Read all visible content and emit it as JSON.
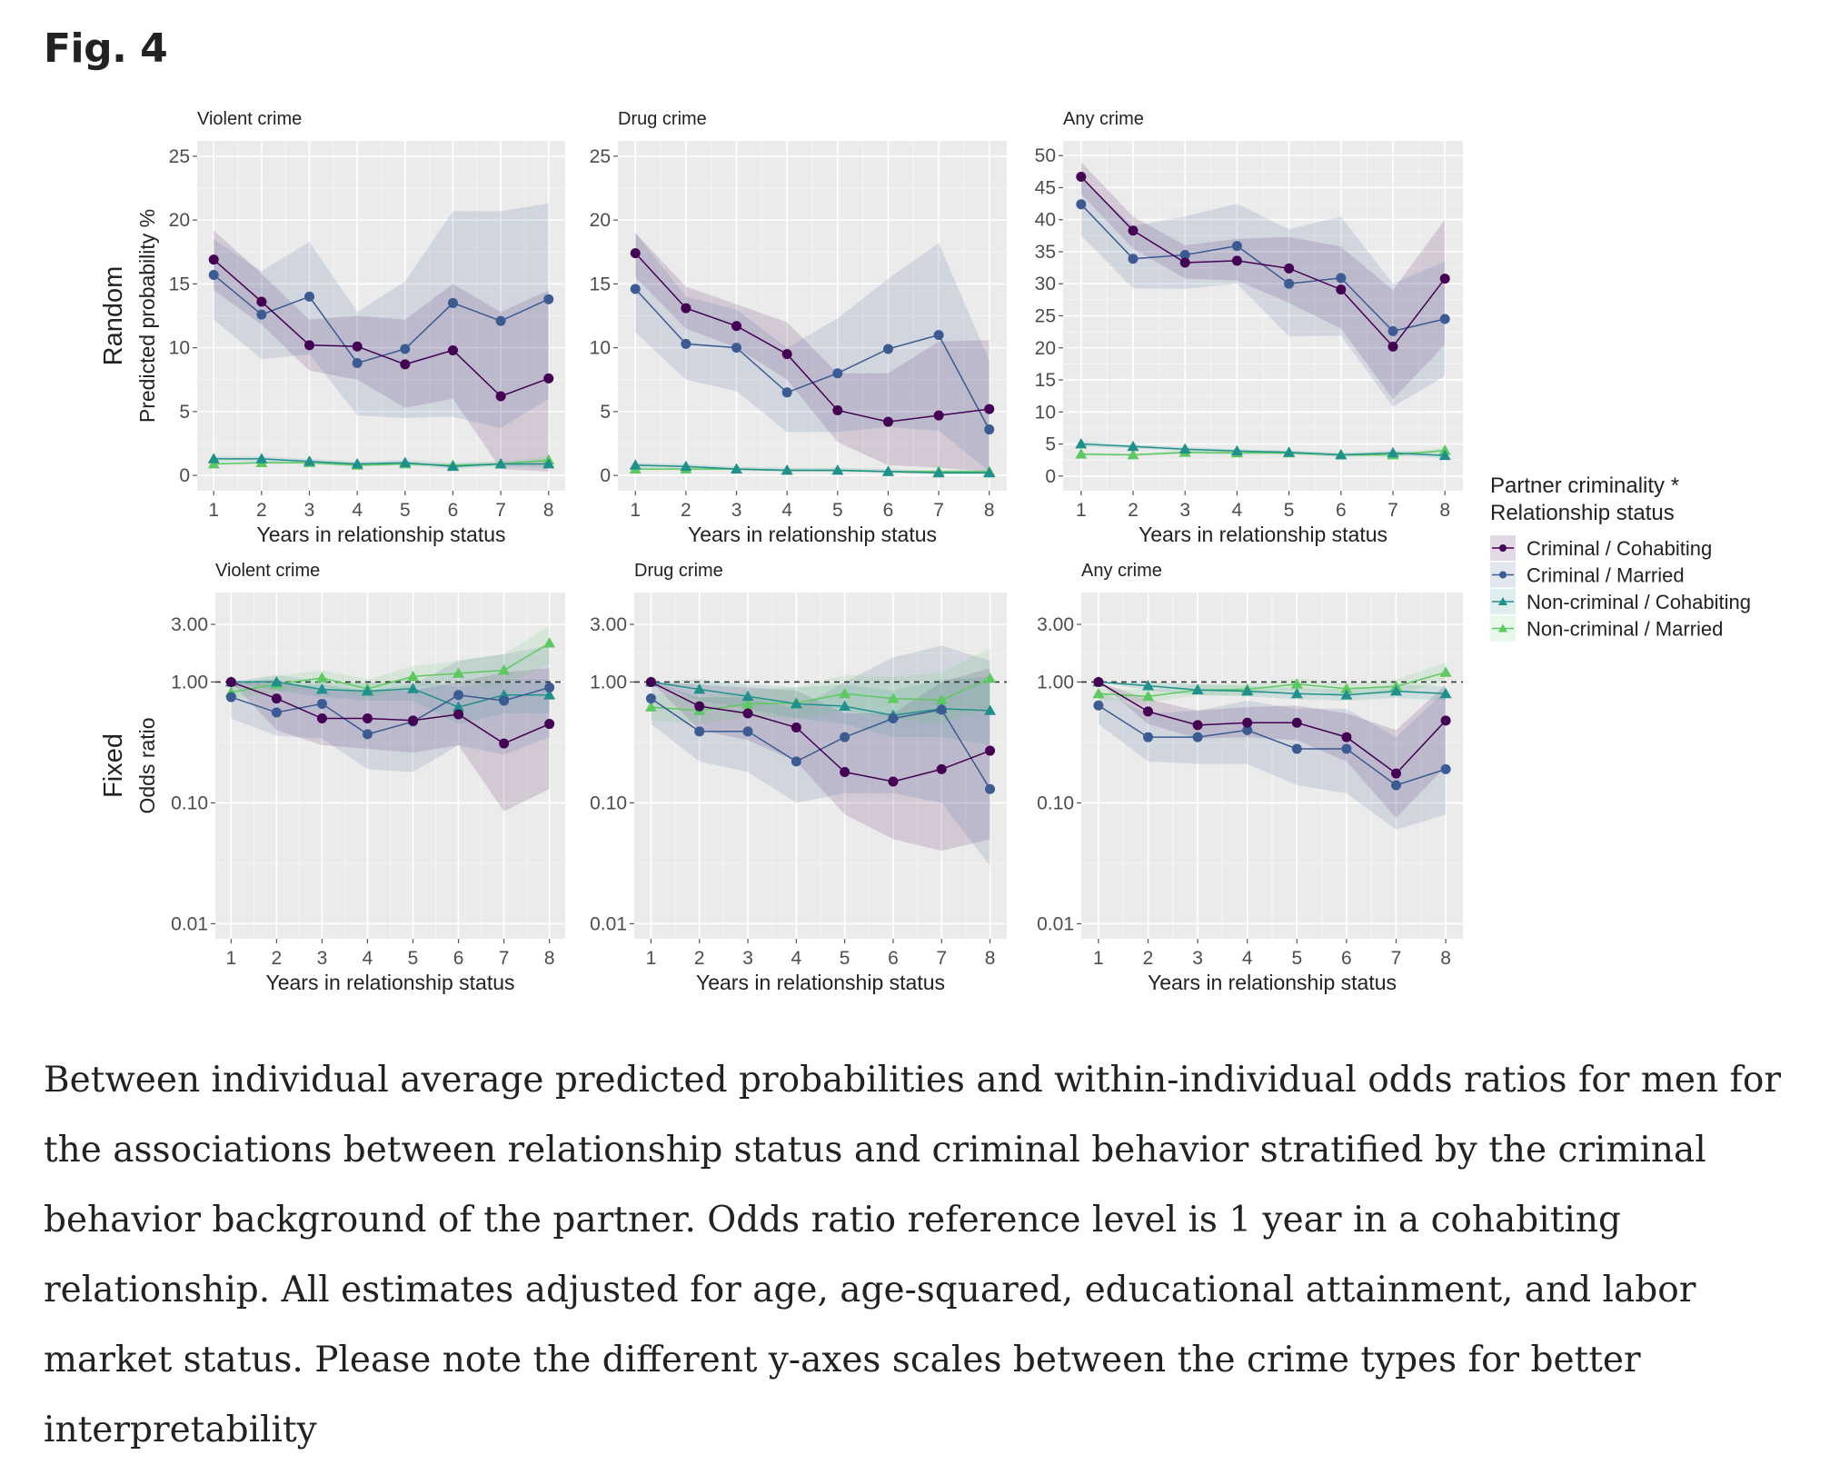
{
  "figure": {
    "title": "Fig. 4",
    "caption": "Between individual average predicted probabilities and within-individual odds ratios for men for the associations between relationship status and criminal behavior stratified by the criminal behavior background of the partner. Odds ratio reference level is 1 year in a cohabiting relationship. All estimates adjusted for age, age-squared, educational attainment, and labor market status. Please note the different y-axes scales between the crime types for better interpretability"
  },
  "chart_data": {
    "type": "line",
    "x": [
      1,
      2,
      3,
      4,
      5,
      6,
      7,
      8
    ],
    "xlabel": "Years in relationship status",
    "legend": {
      "title_line1": "Partner criminality *",
      "title_line2": "Relationship status",
      "placement": "right",
      "entries": [
        {
          "name": "Criminal / Cohabiting",
          "color": "#440154",
          "marker": "circle"
        },
        {
          "name": "Criminal / Married",
          "color": "#3b5b92",
          "marker": "circle"
        },
        {
          "name": "Non-criminal / Cohabiting",
          "color": "#21908c",
          "marker": "triangle"
        },
        {
          "name": "Non-criminal / Married",
          "color": "#5ec962",
          "marker": "triangle"
        }
      ]
    },
    "rows": [
      {
        "label": "Random",
        "ylabel": "Predicted probability %",
        "scale": "linear"
      },
      {
        "label": "Fixed",
        "ylabel": "Odds ratio",
        "scale": "log",
        "reference_line": 1.0
      }
    ],
    "panels": [
      {
        "row": 0,
        "title": "Violent crime",
        "ylim": [
          -1.2,
          26.2
        ],
        "yticks": [
          0,
          5,
          10,
          15,
          20,
          25
        ],
        "ytick_labels": [
          "0",
          "5",
          "10",
          "15",
          "20",
          "25"
        ],
        "series": [
          {
            "name": "Criminal / Cohabiting",
            "values": [
              16.9,
              13.6,
              10.2,
              10.1,
              8.7,
              9.8,
              6.2,
              7.6
            ],
            "lower": [
              14.5,
              11.8,
              8.2,
              7.5,
              5.3,
              6.0,
              0.5,
              0.3
            ],
            "upper": [
              19.2,
              15.8,
              12.2,
              12.5,
              12.2,
              15.0,
              12.8,
              14.5
            ]
          },
          {
            "name": "Criminal / Married",
            "values": [
              15.7,
              12.6,
              14.0,
              8.8,
              9.9,
              13.5,
              12.1,
              13.8
            ],
            "lower": [
              12.2,
              9.1,
              9.5,
              4.7,
              4.5,
              4.6,
              3.7,
              6.0
            ],
            "upper": [
              18.5,
              16.0,
              18.3,
              12.8,
              15.2,
              20.7,
              20.7,
              21.3
            ]
          },
          {
            "name": "Non-criminal / Cohabiting",
            "values": [
              1.3,
              1.3,
              1.1,
              0.9,
              1.0,
              0.7,
              0.9,
              0.9
            ],
            "lower": [
              1.1,
              1.1,
              0.9,
              0.7,
              0.8,
              0.5,
              0.7,
              0.6
            ],
            "upper": [
              1.5,
              1.5,
              1.3,
              1.1,
              1.2,
              1.0,
              1.1,
              1.2
            ]
          },
          {
            "name": "Non-criminal / Married",
            "values": [
              0.9,
              1.0,
              1.0,
              0.8,
              0.9,
              0.8,
              0.9,
              1.2
            ],
            "lower": [
              0.8,
              0.9,
              0.9,
              0.7,
              0.8,
              0.7,
              0.7,
              0.9
            ],
            "upper": [
              1.0,
              1.1,
              1.1,
              0.9,
              1.0,
              0.9,
              1.1,
              1.5
            ]
          }
        ]
      },
      {
        "row": 0,
        "title": "Drug crime",
        "ylim": [
          -1.2,
          26.2
        ],
        "yticks": [
          0,
          5,
          10,
          15,
          20,
          25
        ],
        "ytick_labels": [
          "0",
          "5",
          "10",
          "15",
          "20",
          "25"
        ],
        "series": [
          {
            "name": "Criminal / Cohabiting",
            "values": [
              17.4,
              13.1,
              11.7,
              9.5,
              5.1,
              4.2,
              4.7,
              5.2
            ],
            "lower": [
              15.5,
              11.5,
              10.0,
              7.5,
              2.6,
              0.8,
              0.6,
              0.3
            ],
            "upper": [
              19.0,
              14.8,
              13.4,
              12.0,
              8.0,
              8.0,
              10.5,
              10.6
            ]
          },
          {
            "name": "Criminal / Married",
            "values": [
              14.6,
              10.3,
              10.0,
              6.5,
              8.0,
              9.9,
              11.0,
              3.6
            ],
            "lower": [
              11.2,
              7.5,
              6.6,
              3.4,
              3.4,
              3.8,
              3.5,
              0.3
            ],
            "upper": [
              19.0,
              14.0,
              13.0,
              10.0,
              12.3,
              15.4,
              18.2,
              9.0
            ]
          },
          {
            "name": "Non-criminal / Cohabiting",
            "values": [
              0.8,
              0.7,
              0.5,
              0.4,
              0.4,
              0.3,
              0.2,
              0.2
            ],
            "lower": [
              0.6,
              0.6,
              0.4,
              0.3,
              0.3,
              0.2,
              0.1,
              0.1
            ],
            "upper": [
              1.0,
              0.9,
              0.7,
              0.6,
              0.6,
              0.5,
              0.4,
              0.4
            ]
          },
          {
            "name": "Non-criminal / Married",
            "values": [
              0.5,
              0.5,
              0.5,
              0.4,
              0.4,
              0.3,
              0.3,
              0.3
            ],
            "lower": [
              0.4,
              0.4,
              0.4,
              0.3,
              0.3,
              0.2,
              0.2,
              0.2
            ],
            "upper": [
              0.6,
              0.6,
              0.6,
              0.5,
              0.5,
              0.4,
              0.4,
              0.4
            ]
          }
        ]
      },
      {
        "row": 0,
        "title": "Any crime",
        "ylim": [
          -2.3,
          52.3
        ],
        "yticks": [
          0,
          5,
          10,
          15,
          20,
          25,
          30,
          35,
          40,
          45,
          50
        ],
        "ytick_labels": [
          "0",
          "5",
          "10",
          "15",
          "20",
          "25",
          "30",
          "35",
          "40",
          "45",
          "50"
        ],
        "series": [
          {
            "name": "Criminal / Cohabiting",
            "values": [
              46.7,
              38.3,
              33.3,
              33.6,
              32.4,
              29.1,
              20.2,
              30.8
            ],
            "lower": [
              44.0,
              35.5,
              30.8,
              30.5,
              27.0,
              23.0,
              12.0,
              20.5
            ],
            "upper": [
              49.0,
              40.5,
              36.0,
              37.0,
              37.3,
              35.8,
              29.0,
              40.0
            ]
          },
          {
            "name": "Criminal / Married",
            "values": [
              42.4,
              33.9,
              34.5,
              35.9,
              30.0,
              30.9,
              22.6,
              24.5
            ],
            "lower": [
              37.5,
              29.3,
              29.2,
              30.0,
              21.8,
              21.9,
              10.8,
              15.6
            ],
            "upper": [
              46.5,
              39.0,
              40.5,
              42.5,
              38.5,
              40.5,
              30.0,
              33.5
            ]
          },
          {
            "name": "Non-criminal / Cohabiting",
            "values": [
              5.0,
              4.6,
              4.2,
              3.9,
              3.7,
              3.3,
              3.6,
              3.2
            ],
            "lower": [
              4.6,
              4.3,
              3.9,
              3.6,
              3.4,
              3.0,
              3.2,
              2.8
            ],
            "upper": [
              5.4,
              4.9,
              4.5,
              4.2,
              4.0,
              3.6,
              4.0,
              3.6
            ]
          },
          {
            "name": "Non-criminal / Married",
            "values": [
              3.4,
              3.3,
              3.7,
              3.6,
              3.6,
              3.3,
              3.3,
              4.0
            ],
            "lower": [
              3.2,
              3.1,
              3.4,
              3.3,
              3.3,
              3.0,
              3.0,
              3.6
            ],
            "upper": [
              3.6,
              3.5,
              4.0,
              3.9,
              3.9,
              3.6,
              3.6,
              4.4
            ]
          }
        ]
      },
      {
        "row": 1,
        "title": "Violent crime",
        "ylim": [
          0.0075,
          5.5
        ],
        "yticks": [
          0.01,
          0.1,
          1.0,
          3.0
        ],
        "ytick_labels": [
          "0.01",
          "0.10",
          "1.00",
          "3.00"
        ],
        "series": [
          {
            "name": "Criminal / Cohabiting",
            "values": [
              1.0,
              0.73,
              0.5,
              0.5,
              0.48,
              0.54,
              0.31,
              0.45
            ],
            "lower": [
              1.0,
              0.4,
              0.3,
              0.28,
              0.26,
              0.3,
              0.085,
              0.13
            ],
            "upper": [
              1.0,
              1.05,
              0.85,
              0.85,
              0.85,
              1.0,
              1.2,
              1.3
            ]
          },
          {
            "name": "Criminal / Married",
            "values": [
              0.75,
              0.56,
              0.66,
              0.37,
              0.47,
              0.78,
              0.7,
              0.9
            ],
            "lower": [
              0.5,
              0.36,
              0.34,
              0.19,
              0.18,
              0.3,
              0.25,
              0.35
            ],
            "upper": [
              1.0,
              0.95,
              0.95,
              0.85,
              0.95,
              1.5,
              1.7,
              2.0
            ]
          },
          {
            "name": "Non-criminal / Cohabiting",
            "values": [
              1.0,
              1.0,
              0.87,
              0.84,
              0.88,
              0.62,
              0.78,
              0.78
            ],
            "lower": [
              1.0,
              0.85,
              0.75,
              0.7,
              0.7,
              0.45,
              0.55,
              0.55
            ],
            "upper": [
              1.0,
              1.15,
              1.0,
              1.0,
              1.05,
              0.9,
              1.05,
              1.05
            ]
          },
          {
            "name": "Non-criminal / Married",
            "values": [
              0.82,
              0.96,
              1.08,
              0.88,
              1.11,
              1.18,
              1.25,
              2.1
            ],
            "lower": [
              0.72,
              0.82,
              0.92,
              0.74,
              0.92,
              0.95,
              0.95,
              1.4
            ],
            "upper": [
              0.95,
              1.12,
              1.25,
              1.05,
              1.35,
              1.5,
              1.7,
              2.9
            ]
          }
        ]
      },
      {
        "row": 1,
        "title": "Drug crime",
        "ylim": [
          0.0075,
          5.5
        ],
        "yticks": [
          0.01,
          0.1,
          1.0,
          3.0
        ],
        "ytick_labels": [
          "0.01",
          "0.10",
          "1.00",
          "3.00"
        ],
        "series": [
          {
            "name": "Criminal / Cohabiting",
            "values": [
              1.0,
              0.63,
              0.55,
              0.42,
              0.18,
              0.15,
              0.19,
              0.27
            ],
            "lower": [
              1.0,
              0.4,
              0.33,
              0.22,
              0.08,
              0.05,
              0.04,
              0.05
            ],
            "upper": [
              1.0,
              0.95,
              0.9,
              0.85,
              0.55,
              0.55,
              1.0,
              1.3
            ]
          },
          {
            "name": "Criminal / Married",
            "values": [
              0.73,
              0.39,
              0.39,
              0.22,
              0.35,
              0.5,
              0.59,
              0.13
            ],
            "lower": [
              0.45,
              0.22,
              0.18,
              0.1,
              0.12,
              0.12,
              0.1,
              0.03
            ],
            "upper": [
              1.0,
              0.75,
              0.75,
              0.6,
              1.0,
              1.6,
              2.0,
              1.5
            ]
          },
          {
            "name": "Non-criminal / Cohabiting",
            "values": [
              1.0,
              0.87,
              0.76,
              0.66,
              0.63,
              0.53,
              0.6,
              0.58
            ],
            "lower": [
              1.0,
              0.7,
              0.6,
              0.5,
              0.45,
              0.35,
              0.35,
              0.3
            ],
            "upper": [
              1.0,
              1.05,
              0.95,
              0.9,
              0.95,
              0.85,
              1.05,
              1.1
            ]
          },
          {
            "name": "Non-criminal / Married",
            "values": [
              0.62,
              0.58,
              0.66,
              0.67,
              0.8,
              0.73,
              0.71,
              1.07
            ],
            "lower": [
              0.48,
              0.45,
              0.52,
              0.5,
              0.58,
              0.5,
              0.45,
              0.6
            ],
            "upper": [
              0.8,
              0.75,
              0.85,
              0.9,
              1.15,
              1.1,
              1.2,
              1.9
            ]
          }
        ]
      },
      {
        "row": 1,
        "title": "Any crime",
        "ylim": [
          0.0075,
          5.5
        ],
        "yticks": [
          0.01,
          0.1,
          1.0,
          3.0
        ],
        "ytick_labels": [
          "0.01",
          "0.10",
          "1.00",
          "3.00"
        ],
        "series": [
          {
            "name": "Criminal / Cohabiting",
            "values": [
              1.0,
              0.57,
              0.44,
              0.46,
              0.46,
              0.35,
              0.175,
              0.48
            ],
            "lower": [
              1.0,
              0.45,
              0.34,
              0.35,
              0.33,
              0.22,
              0.075,
              0.2
            ],
            "upper": [
              1.0,
              0.72,
              0.58,
              0.62,
              0.64,
              0.55,
              0.4,
              0.95
            ]
          },
          {
            "name": "Criminal / Married",
            "values": [
              0.64,
              0.35,
              0.35,
              0.4,
              0.28,
              0.28,
              0.14,
              0.19
            ],
            "lower": [
              0.45,
              0.22,
              0.21,
              0.21,
              0.14,
              0.12,
              0.06,
              0.08
            ],
            "upper": [
              0.85,
              0.55,
              0.58,
              0.7,
              0.6,
              0.6,
              0.35,
              0.85
            ]
          },
          {
            "name": "Non-criminal / Cohabiting",
            "values": [
              1.0,
              0.93,
              0.86,
              0.84,
              0.8,
              0.78,
              0.84,
              0.8
            ],
            "lower": [
              1.0,
              0.85,
              0.78,
              0.76,
              0.72,
              0.7,
              0.74,
              0.7
            ],
            "upper": [
              1.0,
              1.02,
              0.95,
              0.93,
              0.89,
              0.87,
              0.95,
              0.92
            ]
          },
          {
            "name": "Non-criminal / Married",
            "values": [
              0.8,
              0.76,
              0.86,
              0.87,
              0.96,
              0.88,
              0.92,
              1.2
            ],
            "lower": [
              0.72,
              0.68,
              0.77,
              0.78,
              0.86,
              0.78,
              0.8,
              1.0
            ],
            "upper": [
              0.89,
              0.85,
              0.96,
              0.97,
              1.07,
              0.99,
              1.05,
              1.45
            ]
          }
        ]
      }
    ]
  }
}
